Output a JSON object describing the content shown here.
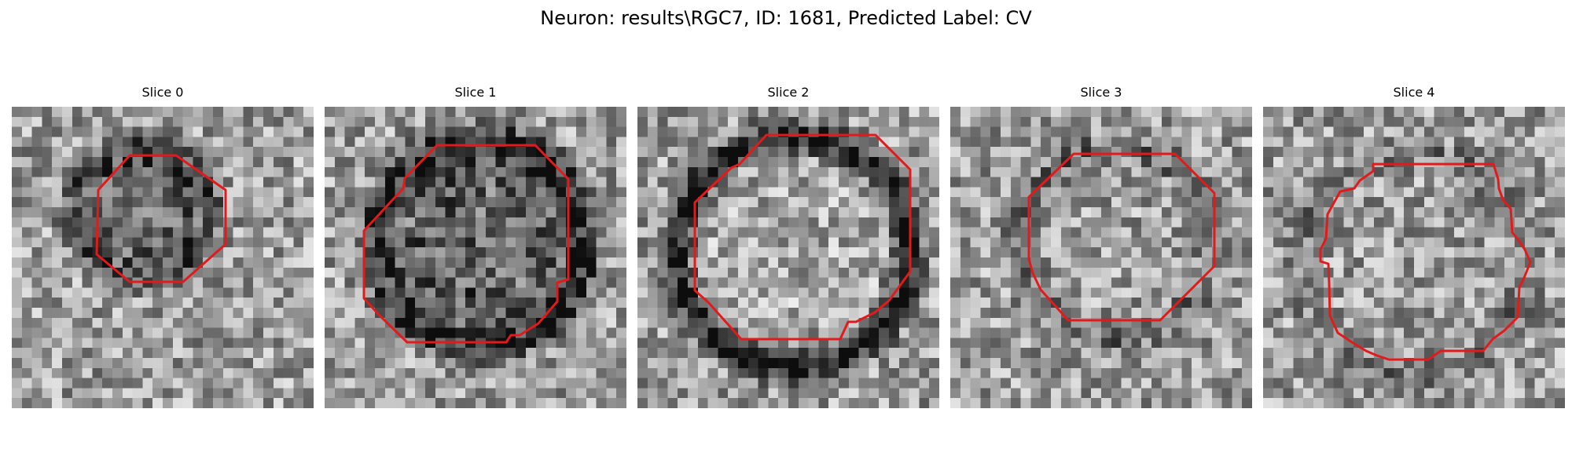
{
  "figure": {
    "title": "Neuron: results\\RGC7, ID: 1681, Predicted Label: CV",
    "contour_color": "#e31a1c"
  },
  "slices": [
    {
      "label": "Slice 0"
    },
    {
      "label": "Slice 1"
    },
    {
      "label": "Slice 2"
    },
    {
      "label": "Slice 3"
    },
    {
      "label": "Slice 4"
    }
  ]
}
